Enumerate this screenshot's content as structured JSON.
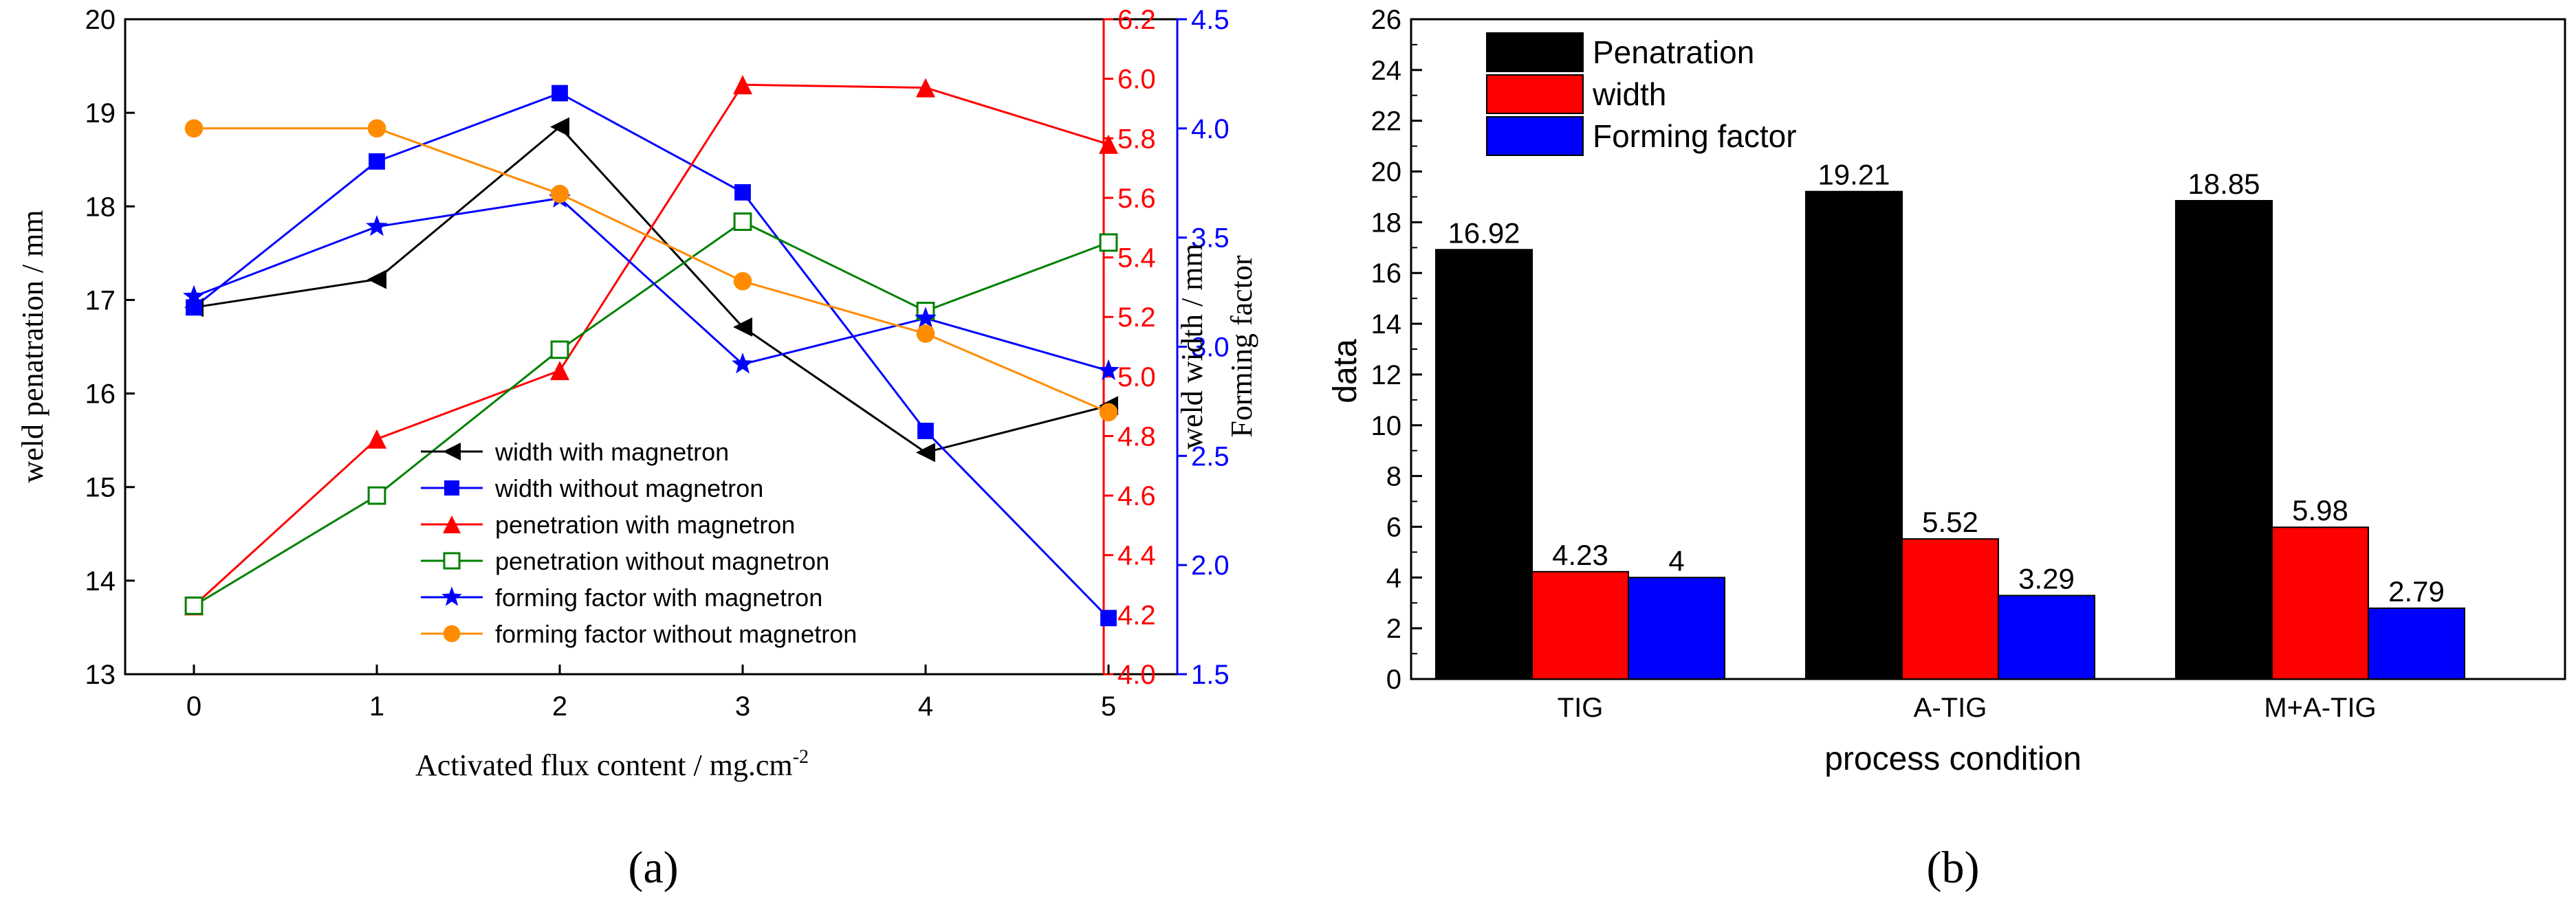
{
  "chart_data": [
    {
      "type": "line",
      "panel_label": "(a)",
      "xlabel": "Activated flux content / mg.cm",
      "xlabel_sup": "-2",
      "x": [
        0,
        1,
        2,
        3,
        4,
        5
      ],
      "xticks": [
        "0",
        "1",
        "2",
        "3",
        "4",
        "5"
      ],
      "axes": {
        "left": {
          "label": "weld penatration / mm",
          "ylim": [
            13,
            20
          ],
          "ticks": [
            "13",
            "14",
            "15",
            "16",
            "17",
            "18",
            "19",
            "20"
          ],
          "color": "#000000"
        },
        "right_red": {
          "label": "weld width / mm",
          "ylim": [
            4.0,
            6.2
          ],
          "ticks": [
            "4.0",
            "4.2",
            "4.4",
            "4.6",
            "4.8",
            "5.0",
            "5.2",
            "5.4",
            "5.6",
            "5.8",
            "6.0",
            "6.2"
          ],
          "color": "#ff0000"
        },
        "right_blue": {
          "label": "Forming factor",
          "ylim": [
            1.5,
            4.5
          ],
          "ticks": [
            "1.5",
            "2.0",
            "2.5",
            "3.0",
            "3.5",
            "4.0",
            "4.5"
          ],
          "color": "#0000ff"
        }
      },
      "series": [
        {
          "name": "width with magnetron",
          "axis": "left",
          "color": "#000000",
          "marker": "triangle-left",
          "values": [
            16.92,
            17.22,
            18.85,
            16.71,
            15.37,
            15.87
          ]
        },
        {
          "name": "width without magnetron",
          "axis": "left",
          "color": "#0000ff",
          "marker": "square",
          "values": [
            16.92,
            18.48,
            19.21,
            18.15,
            15.6,
            13.6
          ]
        },
        {
          "name": "penetration with magnetron",
          "axis": "right_red",
          "color": "#ff0000",
          "marker": "triangle-up",
          "values": [
            4.23,
            4.79,
            5.02,
            5.98,
            5.97,
            5.78
          ]
        },
        {
          "name": "penetration without magnetron",
          "axis": "right_red",
          "color": "#008000",
          "marker": "square-open",
          "values": [
            4.23,
            4.6,
            5.09,
            5.52,
            5.22,
            5.45
          ]
        },
        {
          "name": "forming factor with magnetron",
          "axis": "right_blue",
          "color": "#0000ff",
          "marker": "star",
          "values": [
            3.23,
            3.55,
            3.68,
            2.92,
            3.13,
            2.89
          ]
        },
        {
          "name": "forming factor without magnetron",
          "axis": "right_blue",
          "color": "#ff8c00",
          "marker": "circle",
          "values": [
            4.0,
            4.0,
            3.7,
            3.3,
            3.06,
            2.7
          ]
        }
      ],
      "legend_position": "lower-center",
      "grid": false
    },
    {
      "type": "bar",
      "panel_label": "(b)",
      "categories": [
        "TIG",
        "A-TIG",
        "M+A-TIG"
      ],
      "xlabel": "process condition",
      "ylabel": "data",
      "ylim": [
        0,
        26
      ],
      "yticks": [
        "0",
        "2",
        "4",
        "6",
        "8",
        "10",
        "12",
        "14",
        "16",
        "18",
        "20",
        "22",
        "24",
        "26"
      ],
      "series": [
        {
          "name": "Penatration",
          "color": "#000000",
          "values": [
            16.92,
            19.21,
            18.85
          ],
          "labels": [
            "16.92",
            "19.21",
            "18.85"
          ]
        },
        {
          "name": "width",
          "color": "#ff0000",
          "values": [
            4.23,
            5.52,
            5.98
          ],
          "labels": [
            "4.23",
            "5.52",
            "5.98"
          ]
        },
        {
          "name": "Forming factor",
          "color": "#0000ff",
          "values": [
            4,
            3.29,
            2.79
          ],
          "labels": [
            "4",
            "3.29",
            "2.79"
          ]
        }
      ],
      "legend_position": "top-left",
      "grid": false
    }
  ]
}
